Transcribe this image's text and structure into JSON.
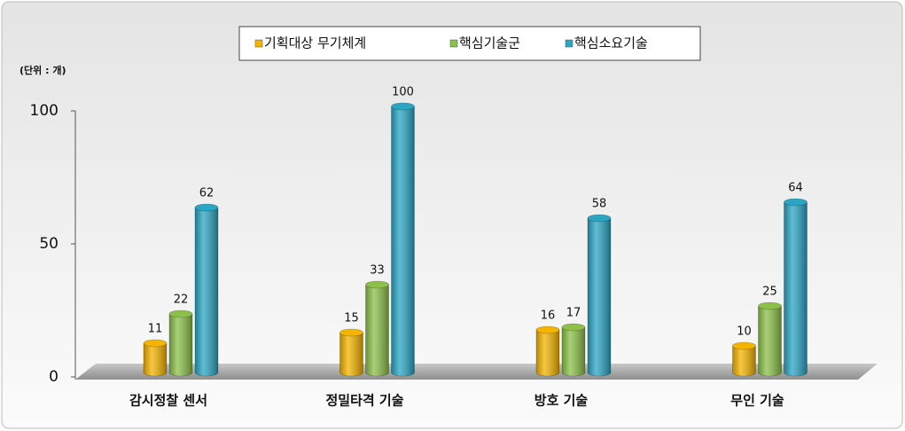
{
  "chart_data": {
    "type": "bar",
    "unit_label": "(단위 : 개)",
    "categories": [
      "감시정찰 센서",
      "정밀타격 기술",
      "방호 기술",
      "무인 기술"
    ],
    "series": [
      {
        "name": "기획대상 무기체계",
        "color": "#f5b400",
        "values": [
          11,
          15,
          16,
          10
        ]
      },
      {
        "name": "핵심기술군",
        "color": "#8cc04a",
        "values": [
          22,
          33,
          17,
          25
        ]
      },
      {
        "name": "핵심소요기술",
        "color": "#2aa5c4",
        "values": [
          62,
          100,
          58,
          64
        ]
      }
    ],
    "ylim": [
      0,
      100
    ],
    "yticks": [
      0,
      50,
      100
    ],
    "grid": false,
    "legend": "top"
  }
}
